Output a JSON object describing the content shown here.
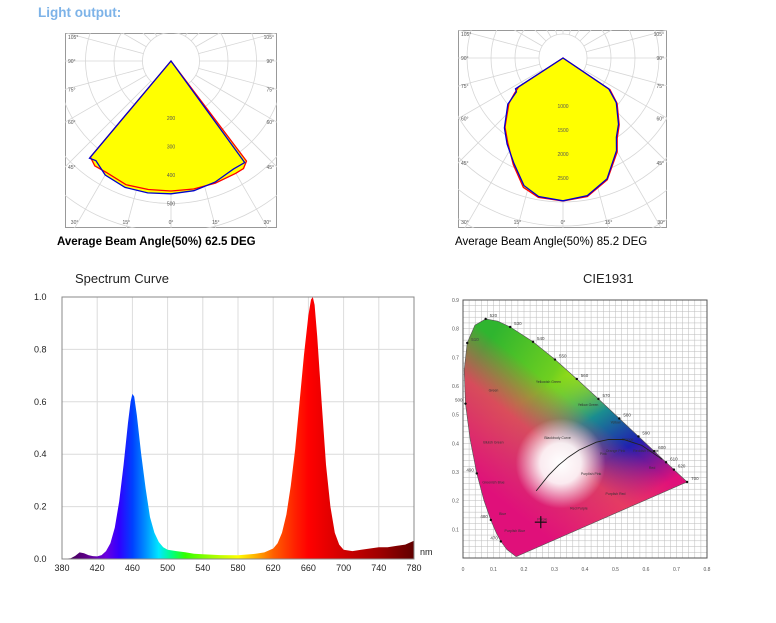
{
  "header": {
    "title": "Light output:"
  },
  "chart_data": [
    {
      "type": "polar",
      "caption": "Average Beam Angle(50%) 62.5 DEG",
      "angle_labels": [
        "105°",
        "90°",
        "75°",
        "60°",
        "45°",
        "30°",
        "15°",
        "0°"
      ],
      "angle_ticks": [
        105,
        90,
        75,
        60,
        45,
        30,
        15,
        0
      ],
      "radial_labels": [
        200,
        300,
        400,
        500
      ],
      "radial_max": 700,
      "radial_step": 100,
      "fill_color": "#ffff00",
      "series": [
        {
          "color": "#ff0000",
          "points": [
            [
              -42,
              0
            ],
            [
              -40,
              440
            ],
            [
              -36,
              455
            ],
            [
              -30,
              452
            ],
            [
              -20,
              462
            ],
            [
              -10,
              458
            ],
            [
              0,
              456
            ],
            [
              10,
              456
            ],
            [
              20,
              456
            ],
            [
              30,
              455
            ],
            [
              34,
              455
            ],
            [
              37,
              440
            ],
            [
              39,
              0
            ]
          ]
        },
        {
          "color": "#0000cc",
          "points": [
            [
              -42,
              0
            ],
            [
              -40,
              445
            ],
            [
              -37,
              438
            ],
            [
              -30,
              462
            ],
            [
              -20,
              472
            ],
            [
              -10,
              470
            ],
            [
              0,
              466
            ],
            [
              10,
              462
            ],
            [
              20,
              452
            ],
            [
              30,
              438
            ],
            [
              36,
              440
            ],
            [
              39,
              0
            ]
          ]
        }
      ]
    },
    {
      "type": "polar",
      "caption": "Average Beam Angle(50%) 85.2 DEG",
      "angle_labels": [
        "105°",
        "90°",
        "75°",
        "60°",
        "45°",
        "30°",
        "15°",
        "0°"
      ],
      "angle_ticks": [
        105,
        90,
        75,
        60,
        45,
        30,
        15,
        0
      ],
      "radial_labels": [
        1000,
        1500,
        2000,
        2500
      ],
      "radial_max": 4000,
      "radial_step": 500,
      "fill_color": "#ffff00",
      "series": [
        {
          "color": "#ff0000",
          "points": [
            [
              -60,
              0
            ],
            [
              -57,
              1100
            ],
            [
              -54,
              1250
            ],
            [
              -50,
              1470
            ],
            [
              -40,
              1880
            ],
            [
              -33,
              2110
            ],
            [
              -25,
              2450
            ],
            [
              -17,
              2820
            ],
            [
              -10,
              2950
            ],
            [
              0,
              2980
            ],
            [
              10,
              2930
            ],
            [
              20,
              2700
            ],
            [
              30,
              2260
            ],
            [
              34,
              2020
            ],
            [
              40,
              1820
            ],
            [
              50,
              1470
            ],
            [
              56,
              1180
            ],
            [
              59,
              0
            ]
          ]
        },
        {
          "color": "#0000cc",
          "points": [
            [
              -60,
              0
            ],
            [
              -57,
              1180
            ],
            [
              -54,
              1200
            ],
            [
              -50,
              1500
            ],
            [
              -40,
              1900
            ],
            [
              -33,
              2140
            ],
            [
              -25,
              2420
            ],
            [
              -17,
              2780
            ],
            [
              -10,
              2930
            ],
            [
              0,
              2975
            ],
            [
              10,
              2910
            ],
            [
              20,
              2680
            ],
            [
              30,
              2230
            ],
            [
              34,
              1990
            ],
            [
              40,
              1800
            ],
            [
              50,
              1450
            ],
            [
              56,
              1150
            ],
            [
              59,
              0
            ]
          ]
        }
      ]
    },
    {
      "type": "area",
      "title": "Spectrum Curve",
      "xlabel": "nm",
      "xlim": [
        380,
        780
      ],
      "ylim": [
        0,
        1.0
      ],
      "xticks": [
        380,
        420,
        460,
        500,
        540,
        580,
        620,
        660,
        700,
        740,
        780
      ],
      "yticks": [
        "0.0",
        "0.2",
        "0.4",
        "0.6",
        "0.8",
        "1.0"
      ],
      "grid": true,
      "x": [
        380,
        390,
        395,
        400,
        405,
        410,
        415,
        420,
        425,
        430,
        435,
        440,
        445,
        450,
        455,
        458,
        460,
        462,
        465,
        470,
        475,
        480,
        485,
        490,
        495,
        500,
        510,
        520,
        530,
        540,
        560,
        580,
        600,
        610,
        620,
        625,
        630,
        635,
        640,
        645,
        650,
        655,
        660,
        663,
        665,
        667,
        670,
        675,
        680,
        685,
        690,
        695,
        700,
        710,
        720,
        730,
        740,
        750,
        760,
        770,
        780
      ],
      "values": [
        0,
        0.003,
        0.012,
        0.025,
        0.022,
        0.015,
        0.011,
        0.01,
        0.015,
        0.03,
        0.06,
        0.12,
        0.22,
        0.36,
        0.52,
        0.6,
        0.63,
        0.62,
        0.55,
        0.4,
        0.27,
        0.16,
        0.1,
        0.065,
        0.045,
        0.035,
        0.03,
        0.026,
        0.02,
        0.018,
        0.015,
        0.014,
        0.02,
        0.025,
        0.04,
        0.06,
        0.1,
        0.17,
        0.28,
        0.42,
        0.6,
        0.78,
        0.93,
        0.99,
        1.0,
        0.97,
        0.85,
        0.6,
        0.36,
        0.2,
        0.1,
        0.055,
        0.035,
        0.03,
        0.035,
        0.04,
        0.045,
        0.045,
        0.05,
        0.055,
        0.07
      ],
      "spectrum_colors": [
        [
          380,
          "#3a0040"
        ],
        [
          410,
          "#600090"
        ],
        [
          430,
          "#6a00e0"
        ],
        [
          445,
          "#3000ff"
        ],
        [
          460,
          "#0040ff"
        ],
        [
          475,
          "#0090ff"
        ],
        [
          490,
          "#00e8ff"
        ],
        [
          505,
          "#00ff80"
        ],
        [
          520,
          "#30ff00"
        ],
        [
          550,
          "#a0ff00"
        ],
        [
          580,
          "#ffff00"
        ],
        [
          600,
          "#ffb000"
        ],
        [
          620,
          "#ff6000"
        ],
        [
          645,
          "#ff2000"
        ],
        [
          660,
          "#ff0000"
        ],
        [
          700,
          "#d00000"
        ],
        [
          740,
          "#a00000"
        ],
        [
          780,
          "#600000"
        ]
      ]
    },
    {
      "type": "scatter",
      "title": "CIE1931",
      "xlim": [
        0,
        0.8
      ],
      "ylim": [
        0,
        0.9
      ],
      "xticks": [
        "0",
        "0.1",
        "0.2",
        "0.3",
        "0.4",
        "0.5",
        "0.6",
        "0.7",
        "0.8"
      ],
      "yticks": [
        "0.1",
        "0.2",
        "0.3",
        "0.4",
        "0.5",
        "0.6",
        "0.7",
        "0.8",
        "0.9"
      ],
      "grid": true,
      "locus": [
        [
          380,
          0.1741,
          0.005
        ],
        [
          460,
          0.144,
          0.0297
        ],
        [
          470,
          0.1241,
          0.0578
        ],
        [
          475,
          0.1096,
          0.0868
        ],
        [
          480,
          0.0913,
          0.1327
        ],
        [
          485,
          0.0687,
          0.2007
        ],
        [
          490,
          0.0454,
          0.295
        ],
        [
          495,
          0.0235,
          0.4127
        ],
        [
          500,
          0.0082,
          0.5384
        ],
        [
          505,
          0.0039,
          0.6548
        ],
        [
          510,
          0.0139,
          0.7502
        ],
        [
          515,
          0.0389,
          0.812
        ],
        [
          520,
          0.0743,
          0.8338
        ],
        [
          525,
          0.1142,
          0.8262
        ],
        [
          530,
          0.1547,
          0.8059
        ],
        [
          540,
          0.2296,
          0.7543
        ],
        [
          550,
          0.3016,
          0.6923
        ],
        [
          560,
          0.3731,
          0.6245
        ],
        [
          570,
          0.4441,
          0.5547
        ],
        [
          580,
          0.5125,
          0.4866
        ],
        [
          590,
          0.5752,
          0.4242
        ],
        [
          600,
          0.627,
          0.3725
        ],
        [
          610,
          0.6658,
          0.334
        ],
        [
          620,
          0.6915,
          0.3083
        ],
        [
          640,
          0.719,
          0.2809
        ],
        [
          700,
          0.7347,
          0.2653
        ]
      ],
      "wavelength_labels": [
        "470",
        "480",
        "490",
        "500",
        "510",
        "520",
        "530",
        "540",
        "550",
        "560",
        "570",
        "580",
        "590",
        "600",
        "610",
        "620",
        "700"
      ],
      "planckian_locus": [
        [
          0.6528,
          0.3444
        ],
        [
          0.5857,
          0.3931
        ],
        [
          0.5267,
          0.4133
        ],
        [
          0.477,
          0.4137
        ],
        [
          0.4369,
          0.4041
        ],
        [
          0.3805,
          0.3768
        ],
        [
          0.3451,
          0.3516
        ],
        [
          0.3135,
          0.3237
        ],
        [
          0.2807,
          0.2884
        ],
        [
          0.2399,
          0.2341
        ]
      ],
      "marker": [
        0.255,
        0.125
      ],
      "region_labels": [
        [
          "Green",
          0.1,
          0.58
        ],
        [
          "Yellowish Green",
          0.28,
          0.61
        ],
        [
          "Yellow Green",
          0.41,
          0.53
        ],
        [
          "Yellow",
          0.5,
          0.47
        ],
        [
          "Orange",
          0.54,
          0.41
        ],
        [
          "Reddish Orange",
          0.6,
          0.37
        ],
        [
          "Red",
          0.62,
          0.31
        ],
        [
          "Pink",
          0.46,
          0.36
        ],
        [
          "Orange Pink",
          0.5,
          0.37
        ],
        [
          "Purplish Pink",
          0.42,
          0.29
        ],
        [
          "Purplish Red",
          0.5,
          0.22
        ],
        [
          "Red Purple",
          0.38,
          0.17
        ],
        [
          "Purple",
          0.26,
          0.13
        ],
        [
          "Bluish Green",
          0.1,
          0.4
        ],
        [
          "Greenish Blue",
          0.1,
          0.26
        ],
        [
          "Blue",
          0.13,
          0.15
        ],
        [
          "Purplish Blue",
          0.17,
          0.09
        ],
        [
          "Blackbody Curve",
          0.31,
          0.415
        ]
      ]
    }
  ]
}
